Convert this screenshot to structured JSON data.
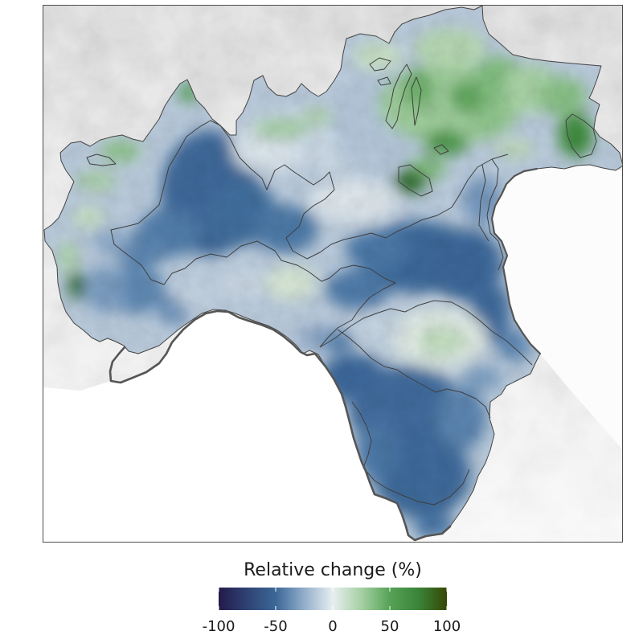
{
  "legend": {
    "title": "Relative change (%)",
    "min": -100,
    "max": 100,
    "ticks": [
      {
        "value": -100,
        "label": "-100"
      },
      {
        "value": -50,
        "label": "-50"
      },
      {
        "value": 0,
        "label": "0"
      },
      {
        "value": 50,
        "label": "50"
      },
      {
        "value": 100,
        "label": "100"
      }
    ],
    "colormap": [
      {
        "value": -100,
        "color": "#241a4a"
      },
      {
        "value": -80,
        "color": "#2c3b6c"
      },
      {
        "value": -50,
        "color": "#3b6797"
      },
      {
        "value": -25,
        "color": "#93aecb"
      },
      {
        "value": 0,
        "color": "#e8eef0"
      },
      {
        "value": 25,
        "color": "#a6d0a4"
      },
      {
        "value": 50,
        "color": "#56a257"
      },
      {
        "value": 75,
        "color": "#3a8439"
      },
      {
        "value": 100,
        "color": "#374705"
      }
    ]
  },
  "map": {
    "outline_color": "#444444",
    "coast_color": "#555555",
    "sea_color": "#ffffff"
  }
}
